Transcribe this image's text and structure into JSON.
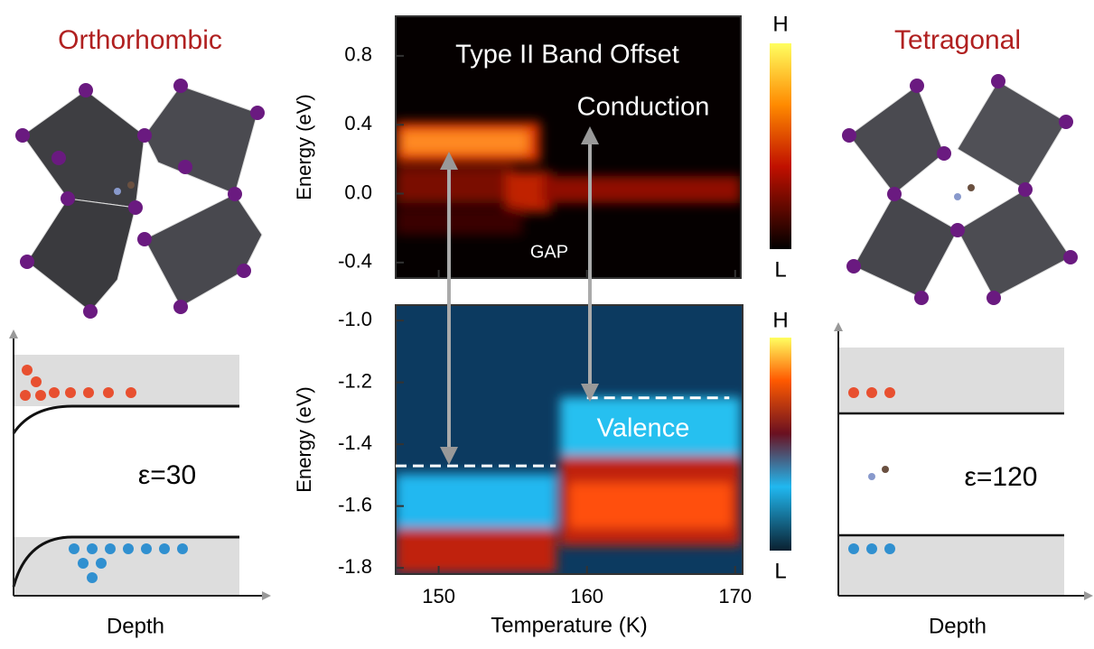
{
  "figure": {
    "left": {
      "title": "Orthorhombic",
      "epsilon": "ε=30",
      "axis_label": "Depth"
    },
    "right": {
      "title": "Tetragonal",
      "epsilon": "ε=120",
      "axis_label": "Depth"
    },
    "top_map": {
      "title": "Type II Band Offset",
      "label_band": "Conduction",
      "label_gap": "GAP",
      "y_label": "Energy (eV)",
      "ylim": [
        -0.49,
        1.03
      ],
      "yticks": [
        -0.4,
        {
          "value": 0,
          "label": "0.0"
        },
        0.4,
        0.8
      ],
      "colorbar_high": "H",
      "colorbar_low": "L"
    },
    "bottom_map": {
      "label_band": "Valence",
      "y_label": "Energy (eV)",
      "ylim": [
        -1.82,
        -0.95
      ],
      "yticks": [
        -1.8,
        -1.6,
        -1.4,
        -1.2,
        {
          "value": -1,
          "label": "-1.0"
        }
      ],
      "band_edges": [
        {
          "x": [
            147.1,
            157.9
          ],
          "energy": -1.47
        },
        {
          "x": [
            160,
            169.6
          ],
          "energy": -1.25
        }
      ],
      "colorbar_high": "H",
      "colorbar_low": "L"
    },
    "x_axis": {
      "label": "Temperature (K)",
      "xlim": [
        147.1,
        170.5
      ],
      "xticks": [
        150,
        160,
        170
      ]
    }
  }
}
